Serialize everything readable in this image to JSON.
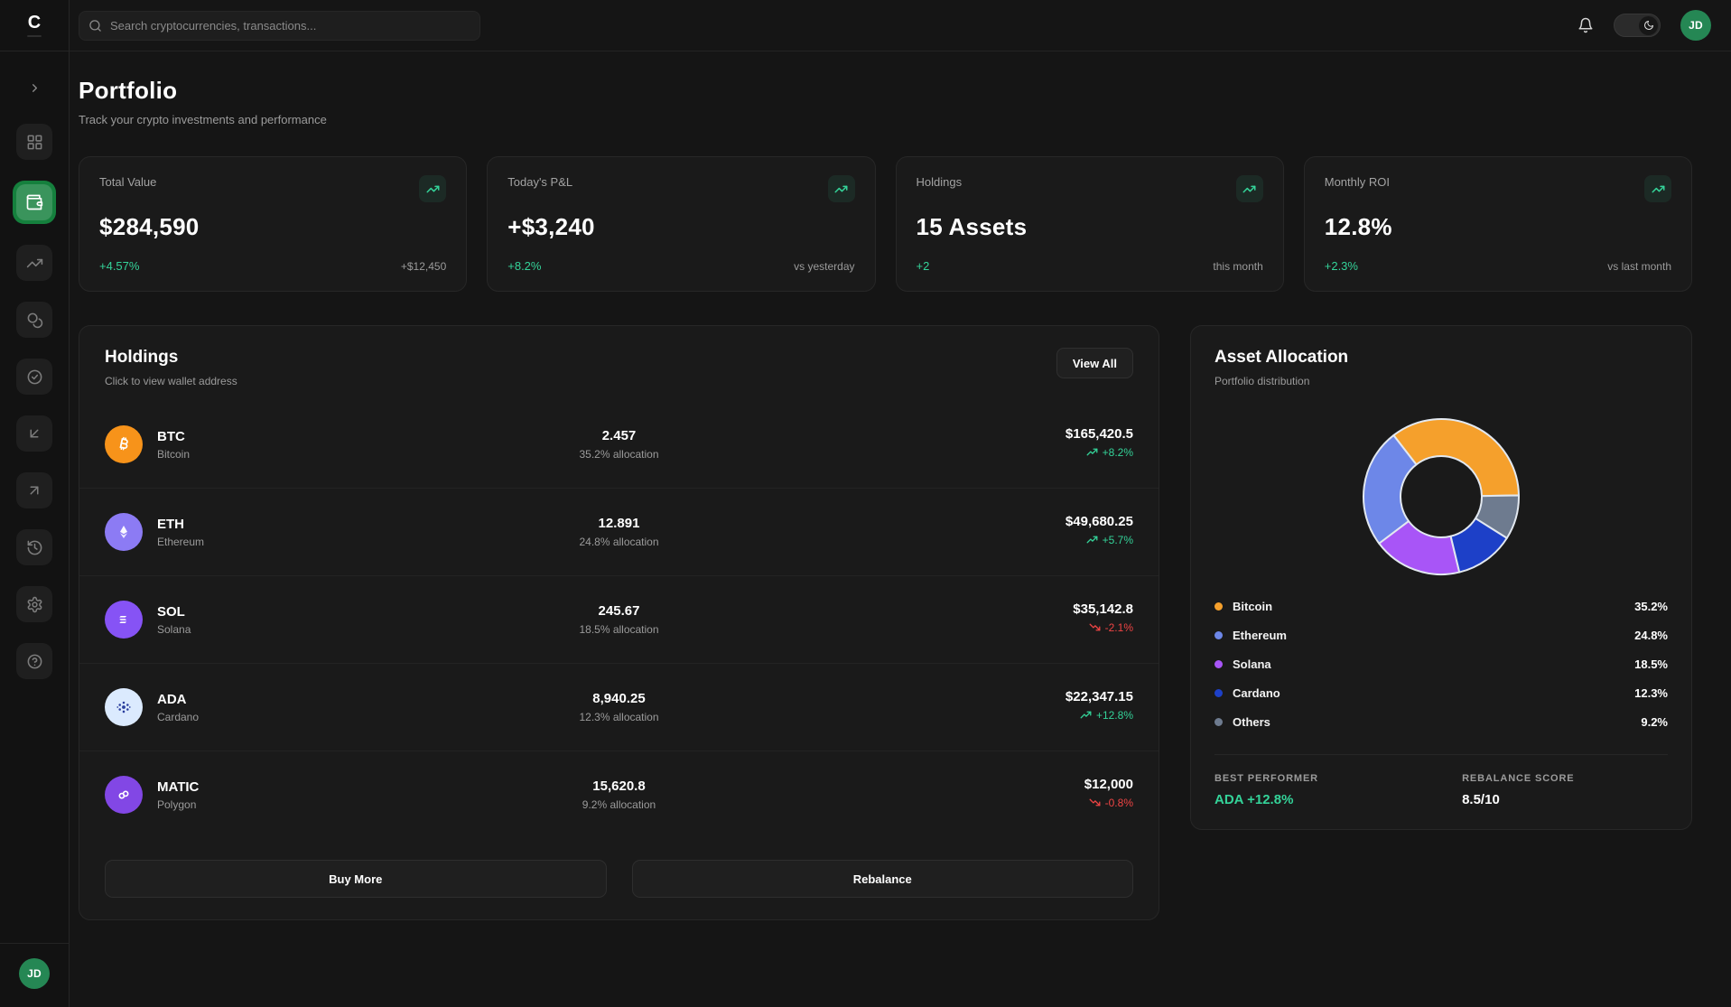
{
  "topbar": {
    "logo": "C",
    "search_placeholder": "Search cryptocurrencies, transactions...",
    "avatar_initials": "JD"
  },
  "sidebar": {
    "items": [
      {
        "icon": "chevron-right",
        "name": "collapse"
      },
      {
        "icon": "dashboard-grid",
        "name": "dashboard",
        "active": false
      },
      {
        "icon": "wallet",
        "name": "portfolio",
        "active": true
      },
      {
        "icon": "trending-up",
        "name": "markets",
        "active": false
      },
      {
        "icon": "coins",
        "name": "assets",
        "active": false
      },
      {
        "icon": "check-circle",
        "name": "orders",
        "active": false
      },
      {
        "icon": "arrow-down-left",
        "name": "receive",
        "active": false
      },
      {
        "icon": "arrow-up-right",
        "name": "send",
        "active": false
      },
      {
        "icon": "history",
        "name": "history",
        "active": false
      },
      {
        "icon": "settings-gear",
        "name": "settings",
        "active": false
      },
      {
        "icon": "help-circle",
        "name": "help",
        "active": false
      }
    ],
    "avatar_initials": "JD"
  },
  "page": {
    "title": "Portfolio",
    "subtitle": "Track your crypto investments and performance"
  },
  "stats": [
    {
      "label": "Total Value",
      "value": "$284,590",
      "change": "+4.57%",
      "note": "+$12,450"
    },
    {
      "label": "Today's P&L",
      "value": "+$3,240",
      "change": "+8.2%",
      "note": "vs yesterday"
    },
    {
      "label": "Holdings",
      "value": "15 Assets",
      "change": "+2",
      "note": "this month"
    },
    {
      "label": "Monthly ROI",
      "value": "12.8%",
      "change": "+2.3%",
      "note": "vs last month"
    }
  ],
  "holdings": {
    "title": "Holdings",
    "subtitle": "Click to view wallet address",
    "view_all_label": "View All",
    "buy_more_label": "Buy More",
    "rebalance_label": "Rebalance",
    "rows": [
      {
        "symbol": "BTC",
        "name": "Bitcoin",
        "amount": "2.457",
        "allocation": "35.2% allocation",
        "value": "$165,420.5",
        "change": "+8.2%",
        "direction": "up",
        "icon_color": "#f7931a"
      },
      {
        "symbol": "ETH",
        "name": "Ethereum",
        "amount": "12.891",
        "allocation": "24.8% allocation",
        "value": "$49,680.25",
        "change": "+5.7%",
        "direction": "up",
        "icon_color": "#8c7bf4"
      },
      {
        "symbol": "SOL",
        "name": "Solana",
        "amount": "245.67",
        "allocation": "18.5% allocation",
        "value": "$35,142.8",
        "change": "-2.1%",
        "direction": "down",
        "icon_color": "#8653f5"
      },
      {
        "symbol": "ADA",
        "name": "Cardano",
        "amount": "8,940.25",
        "allocation": "12.3% allocation",
        "value": "$22,347.15",
        "change": "+12.8%",
        "direction": "up",
        "icon_color": "#dbeafe"
      },
      {
        "symbol": "MATIC",
        "name": "Polygon",
        "amount": "15,620.8",
        "allocation": "9.2% allocation",
        "value": "$12,000",
        "change": "-0.8%",
        "direction": "down",
        "icon_color": "#8247e5"
      }
    ]
  },
  "allocation": {
    "title": "Asset Allocation",
    "subtitle": "Portfolio distribution",
    "best_performer_label": "BEST PERFORMER",
    "best_performer_value": "ADA +12.8%",
    "rebalance_score_label": "REBALANCE SCORE",
    "rebalance_score_value": "8.5/10"
  },
  "chart_data": {
    "type": "pie",
    "title": "Asset Allocation",
    "labels": [
      "Bitcoin",
      "Ethereum",
      "Solana",
      "Cardano",
      "Others"
    ],
    "values": [
      35.2,
      24.8,
      18.5,
      12.3,
      9.2
    ],
    "value_labels": [
      "35.2%",
      "24.8%",
      "18.5%",
      "12.3%",
      "9.2%"
    ],
    "colors": [
      "#f5a02c",
      "#6d87e8",
      "#a855f7",
      "#1d40c8",
      "#6e7b8f"
    ],
    "donut": true,
    "inner_radius_ratio": 0.52,
    "start_angle_deg": 89,
    "direction": "counterclockwise",
    "slice_stroke": "#e2e8f0",
    "legend_position": "bottom"
  },
  "status_colors": {
    "positive": "#34d399",
    "negative": "#ef4444",
    "accent": "#15803d"
  }
}
